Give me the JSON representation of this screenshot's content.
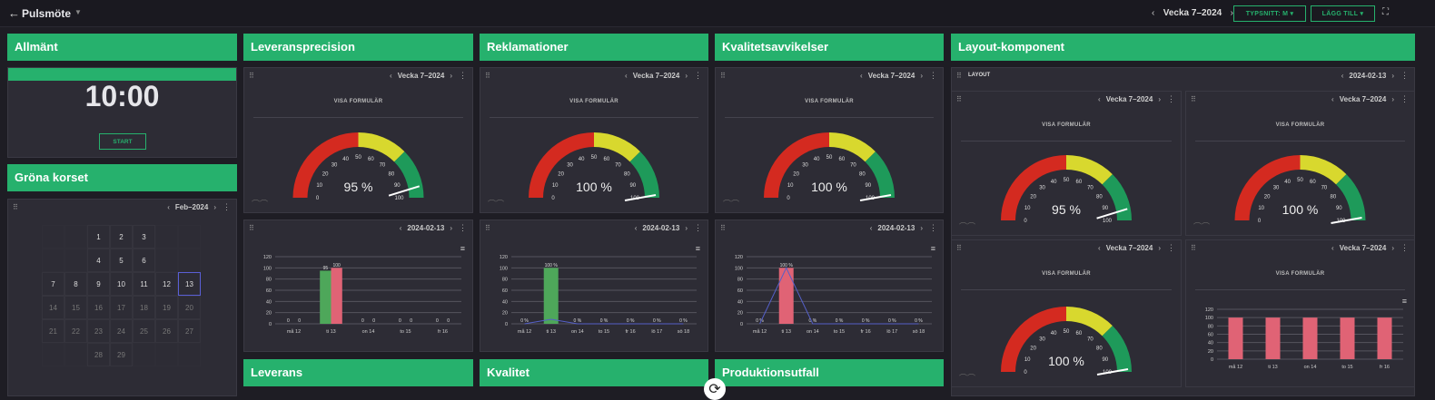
{
  "topbar": {
    "title": "Pulsmöte",
    "week": "Vecka 7–2024",
    "font_button": "TYPSNITT: M",
    "add_button": "LÄGG TILL"
  },
  "groups": {
    "general": "Allmänt",
    "delivery_precision": "Leveransprecision",
    "complaints": "Reklamationer",
    "quality_deviations": "Kvalitetsavvikelser",
    "layout_component": "Layout-komponent",
    "green_cross": "Gröna korset",
    "delivery": "Leverans",
    "quality": "Kvalitet",
    "production_loss": "Produktionsutfall"
  },
  "timer": {
    "time": "10:00",
    "start": "START"
  },
  "calendar": {
    "period": "Feb–2024",
    "weeks": [
      [
        "",
        "",
        "1",
        "2",
        "3",
        "",
        "",
        ""
      ],
      [
        "",
        "",
        "4",
        "5",
        "6",
        "",
        "",
        ""
      ],
      [
        "7",
        "8",
        "9",
        "10",
        "11",
        "12",
        "13",
        ""
      ],
      [
        "14",
        "15",
        "16",
        "17",
        "18",
        "19",
        "20",
        ""
      ],
      [
        "21",
        "22",
        "23",
        "24",
        "25",
        "26",
        "27",
        ""
      ],
      [
        "",
        "",
        "28",
        "29",
        "",
        "",
        "",
        ""
      ]
    ],
    "today": "13"
  },
  "common": {
    "show_form": "VISA FORMULÄR",
    "week_label": "Vecka 7–2024",
    "date_label": "2024-02-13",
    "layout_label": "LAYOUT"
  },
  "gauges": {
    "ticks": [
      "0",
      "10",
      "20",
      "30",
      "40",
      "50",
      "60",
      "70",
      "80",
      "90",
      "100"
    ],
    "delivery_precision": {
      "value": 95,
      "label": "95 %"
    },
    "complaints": {
      "value": 100,
      "label": "100 %"
    },
    "quality_deviations": {
      "value": 100,
      "label": "100 %"
    },
    "layout_1": {
      "value": 95,
      "label": "95 %"
    },
    "layout_2": {
      "value": 100,
      "label": "100 %"
    },
    "layout_3": {
      "value": 100,
      "label": "100 %"
    }
  },
  "colors": {
    "green": "#26b16d",
    "red": "#d42a20",
    "yellow": "#d8d82e",
    "dark_green": "#1e9a5a",
    "bar_red": "#e06375",
    "bar_green": "#4ea75a",
    "line_blue": "#5560c8"
  },
  "chart_data": [
    {
      "type": "bar",
      "panel": "delivery_precision",
      "categories": [
        "må 12",
        "ti 13",
        "on 14",
        "to 15",
        "fr 16"
      ],
      "series": [
        {
          "values": [
            0,
            95,
            0,
            0,
            0
          ]
        },
        {
          "values": [
            0,
            100,
            0,
            0,
            0
          ]
        }
      ],
      "data_labels": [
        [
          "0",
          "95",
          "0",
          "0",
          "0"
        ],
        [
          "0",
          "100",
          "0",
          "0",
          "0"
        ]
      ],
      "yticks": [
        "0",
        "20",
        "40",
        "60",
        "80",
        "100",
        "120"
      ],
      "ylim": [
        0,
        120
      ]
    },
    {
      "type": "bar",
      "panel": "complaints",
      "categories": [
        "må 12",
        "ti 13",
        "on 14",
        "to 15",
        "fr 16",
        "lö 17",
        "sö 18"
      ],
      "series": [
        {
          "values": [
            0,
            100,
            0,
            0,
            0,
            0,
            0
          ]
        }
      ],
      "data_labels": [
        [
          "0 %",
          "100 %",
          "0 %",
          "0 %",
          "0 %",
          "0 %",
          "0 %"
        ]
      ],
      "yticks": [
        "0",
        "20",
        "40",
        "60",
        "80",
        "100",
        "120"
      ],
      "ylim": [
        0,
        120
      ]
    },
    {
      "type": "bar",
      "panel": "quality_deviations",
      "categories": [
        "må 12",
        "ti 13",
        "on 14",
        "to 15",
        "fr 16",
        "lö 17",
        "sö 18"
      ],
      "series": [
        {
          "values": [
            0,
            100,
            0,
            0,
            0,
            0,
            0
          ]
        }
      ],
      "data_labels": [
        [
          "0 %",
          "100 %",
          "0 %",
          "0 %",
          "0 %",
          "0 %",
          "0 %"
        ]
      ],
      "yticks": [
        "0",
        "20",
        "40",
        "60",
        "80",
        "100",
        "120"
      ],
      "ylim": [
        0,
        120
      ]
    },
    {
      "type": "bar",
      "panel": "layout_4",
      "categories": [
        "må 12",
        "ti 13",
        "on 14",
        "to 15",
        "fr 16"
      ],
      "series": [
        {
          "values": [
            100,
            100,
            100,
            100,
            100
          ]
        }
      ],
      "data_labels": [],
      "yticks": [
        "0",
        "20",
        "40",
        "60",
        "80",
        "100",
        "120"
      ],
      "ylim": [
        0,
        120
      ]
    }
  ]
}
